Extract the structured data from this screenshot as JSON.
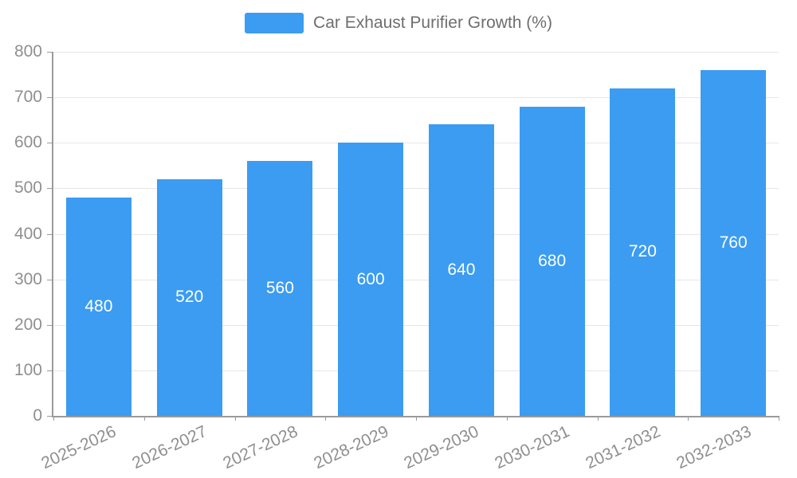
{
  "legend": {
    "label": "Car Exhaust Purifier Growth (%)",
    "swatch_color": "#3b9cf1"
  },
  "chart_data": {
    "type": "bar",
    "title": "Car Exhaust Purifier Growth (%)",
    "series_name": "Car Exhaust Purifier Growth (%)",
    "categories": [
      "2025-2026",
      "2026-2027",
      "2027-2028",
      "2028-2029",
      "2029-2030",
      "2030-2031",
      "2031-2032",
      "2032-2033"
    ],
    "values": [
      480,
      520,
      560,
      600,
      640,
      680,
      720,
      760
    ],
    "xlabel": "",
    "ylabel": "",
    "ylim": [
      0,
      800
    ],
    "ytick_step": 100,
    "yticks": [
      0,
      100,
      200,
      300,
      400,
      500,
      600,
      700,
      800
    ],
    "bar_color": "#3b9cf1",
    "value_label_color": "#ffffff",
    "axis_line_color": "#9a9a9a",
    "gridline_color": "#e6e6e6",
    "tick_label_color": "#8f8f8f",
    "grid": true,
    "legend_position": "top",
    "x_label_rotation_deg": -25
  }
}
